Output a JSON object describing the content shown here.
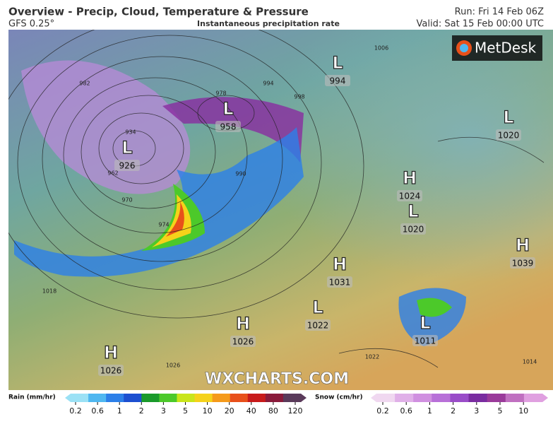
{
  "header": {
    "title": "Overview - Precip, Cloud, Temperature & Pressure",
    "model": "GFS 0.25°",
    "subtitle": "Instantaneous precipitation rate",
    "run": "Run: Fri 14 Feb 06Z",
    "valid": "Valid: Sat 15 Feb 00:00 UTC"
  },
  "logo": "MetDesk",
  "watermark": "WXCHARTS.COM",
  "pressure_systems": [
    {
      "type": "L",
      "value": 994
    },
    {
      "type": "L",
      "value": 958
    },
    {
      "type": "L",
      "value": 926
    },
    {
      "type": "L",
      "value": 1020
    },
    {
      "type": "H",
      "value": 1024
    },
    {
      "type": "L",
      "value": 1020
    },
    {
      "type": "H",
      "value": 1039
    },
    {
      "type": "H",
      "value": 1031
    },
    {
      "type": "L",
      "value": 1022
    },
    {
      "type": "H",
      "value": 1026
    },
    {
      "type": "H",
      "value": 1026
    },
    {
      "type": "L",
      "value": 1011
    }
  ],
  "isobar_labels": [
    982,
    934,
    962,
    970,
    974,
    978,
    990,
    994,
    998,
    1006,
    1018,
    1026,
    1022,
    1014
  ],
  "legend": {
    "rain": {
      "label": "Rain (mm/hr)",
      "ticks": [
        0.2,
        0.6,
        1,
        2,
        3,
        5,
        10,
        20,
        40,
        80,
        120
      ]
    },
    "snow": {
      "label": "Snow (cm/hr)",
      "ticks": [
        0.2,
        0.6,
        1,
        2,
        3,
        5,
        10
      ]
    }
  }
}
